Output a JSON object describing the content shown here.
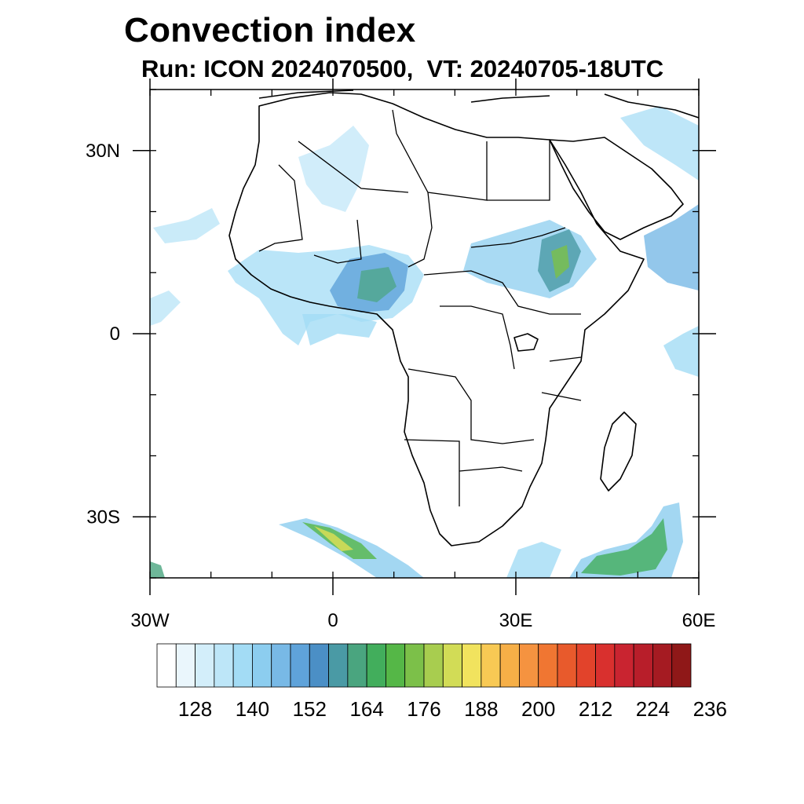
{
  "title": "Convection index",
  "subtitle": "Run: ICON 2024070500,  VT: 20240705-18UTC",
  "map": {
    "lon_range": [
      -30,
      60
    ],
    "lat_range": [
      -40,
      40
    ],
    "lat_ticks": [
      {
        "value": 30,
        "label": "30N"
      },
      {
        "value": 0,
        "label": "0"
      },
      {
        "value": -30,
        "label": "30S"
      }
    ],
    "lon_ticks": [
      {
        "value": -30,
        "label": "30W"
      },
      {
        "value": 0,
        "label": "0"
      },
      {
        "value": 30,
        "label": "30E"
      },
      {
        "value": 60,
        "label": "60E"
      }
    ]
  },
  "colorbar": {
    "colors": [
      "#ffffff",
      "#eaf6fc",
      "#d3eefa",
      "#bde6f8",
      "#a3dcf5",
      "#8ccdef",
      "#78b9e6",
      "#5fa3da",
      "#4b8fc6",
      "#4a9aa5",
      "#4aa57f",
      "#42ae5c",
      "#55b747",
      "#7cc049",
      "#a8cd4f",
      "#d2dc56",
      "#f1e35e",
      "#f8c954",
      "#f6af47",
      "#f59340",
      "#f07632",
      "#e85a2c",
      "#e2432b",
      "#d9302e",
      "#c92430",
      "#b81e2a",
      "#a51b22",
      "#8f1818"
    ],
    "labels": [
      "128",
      "140",
      "152",
      "164",
      "176",
      "188",
      "200",
      "212",
      "224",
      "236"
    ]
  }
}
